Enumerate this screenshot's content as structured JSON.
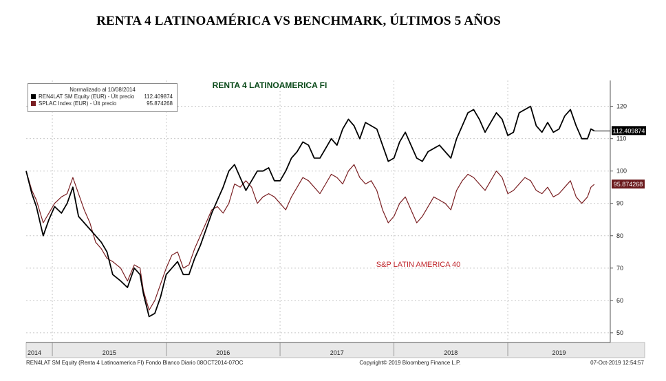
{
  "page": {
    "title": "RENTA 4 LATINOAMÉRICA VS BENCHMARK, ÚLTIMOS 5 AÑOS"
  },
  "colors": {
    "black_series": "#000000",
    "red_series": "#7a1f22",
    "grid": "#c8c8c8",
    "annotation_red": "#c0262c"
  },
  "chart_data": {
    "type": "line",
    "title": "RENTA 4 LATINOAMERICA FI",
    "annotation": "S&P LATIN AMERICA 40",
    "xlabel": "",
    "ylabel": "",
    "ylim": [
      47,
      128
    ],
    "yticks": [
      50,
      60,
      70,
      80,
      90,
      100,
      110,
      120
    ],
    "xticks": [
      "2014",
      "2015",
      "2016",
      "2017",
      "2018",
      "2019"
    ],
    "grid": true,
    "legend_position": "top-left",
    "legend": {
      "header": "Normalizado al 10/08/2014",
      "entries": [
        {
          "name": "REN4LAT SM Equity (EUR) - Últ precio",
          "value": "112.409874"
        },
        {
          "name": "SPLAC Index (EUR) - Últ precio",
          "value": "95.874268"
        }
      ]
    },
    "last_labels": {
      "black": "112.409874",
      "red": "95.874268"
    },
    "footer": {
      "left": "REN4LAT SM Equity (Renta 4 Latinoamerica FI) Fondo Blanco  Diario 08OCT2014-07OC",
      "center": "Copyright© 2019 Bloomberg Finance L.P.",
      "right": "07-Oct-2019 12:54:57"
    },
    "series": [
      {
        "name": "REN4LAT SM Equity (EUR)",
        "x": [
          2014.77,
          2014.82,
          2014.86,
          2014.92,
          2014.97,
          2015.02,
          2015.08,
          2015.13,
          2015.18,
          2015.23,
          2015.28,
          2015.33,
          2015.38,
          2015.43,
          2015.48,
          2015.53,
          2015.6,
          2015.66,
          2015.72,
          2015.77,
          2015.8,
          2015.85,
          2015.9,
          2015.95,
          2016.0,
          2016.05,
          2016.1,
          2016.15,
          2016.2,
          2016.25,
          2016.3,
          2016.35,
          2016.4,
          2016.45,
          2016.5,
          2016.55,
          2016.6,
          2016.65,
          2016.7,
          2016.75,
          2016.8,
          2016.85,
          2016.9,
          2016.95,
          2017.0,
          2017.05,
          2017.1,
          2017.15,
          2017.2,
          2017.25,
          2017.3,
          2017.35,
          2017.4,
          2017.45,
          2017.5,
          2017.55,
          2017.6,
          2017.65,
          2017.7,
          2017.75,
          2017.8,
          2017.85,
          2017.9,
          2017.95,
          2018.0,
          2018.05,
          2018.1,
          2018.15,
          2018.2,
          2018.25,
          2018.3,
          2018.35,
          2018.4,
          2018.45,
          2018.5,
          2018.55,
          2018.6,
          2018.65,
          2018.7,
          2018.75,
          2018.8,
          2018.85,
          2018.9,
          2018.95,
          2019.0,
          2019.05,
          2019.1,
          2019.15,
          2019.2,
          2019.25,
          2019.3,
          2019.35,
          2019.4,
          2019.45,
          2019.5,
          2019.55,
          2019.6,
          2019.65,
          2019.7,
          2019.73,
          2019.76
        ],
        "values": [
          100,
          93,
          89,
          80,
          85,
          89,
          87,
          90,
          95,
          86,
          84,
          82,
          80,
          78,
          75,
          68,
          66,
          64,
          70,
          68,
          62,
          55,
          56,
          61,
          68,
          70,
          72,
          68,
          68,
          73,
          77,
          82,
          87,
          91,
          95,
          100,
          102,
          98,
          94,
          97,
          100,
          100,
          101,
          97,
          97,
          100,
          104,
          106,
          109,
          108,
          104,
          104,
          107,
          110,
          108,
          113,
          116,
          114,
          110,
          115,
          114,
          113,
          108,
          103,
          104,
          109,
          112,
          108,
          104,
          103,
          106,
          107,
          108,
          106,
          104,
          110,
          114,
          118,
          119,
          116,
          112,
          115,
          118,
          116,
          111,
          112,
          118,
          119,
          120,
          114,
          112,
          115,
          112,
          113,
          117,
          119,
          114,
          110,
          110,
          113,
          112.41
        ]
      },
      {
        "name": "SPLAC Index (EUR)",
        "x": [
          2014.77,
          2014.82,
          2014.86,
          2014.92,
          2014.97,
          2015.02,
          2015.08,
          2015.13,
          2015.18,
          2015.23,
          2015.28,
          2015.33,
          2015.38,
          2015.43,
          2015.48,
          2015.53,
          2015.6,
          2015.66,
          2015.72,
          2015.77,
          2015.8,
          2015.85,
          2015.9,
          2015.95,
          2016.0,
          2016.05,
          2016.1,
          2016.15,
          2016.2,
          2016.25,
          2016.3,
          2016.35,
          2016.4,
          2016.45,
          2016.5,
          2016.55,
          2016.6,
          2016.65,
          2016.7,
          2016.75,
          2016.8,
          2016.85,
          2016.9,
          2016.95,
          2017.0,
          2017.05,
          2017.1,
          2017.15,
          2017.2,
          2017.25,
          2017.3,
          2017.35,
          2017.4,
          2017.45,
          2017.5,
          2017.55,
          2017.6,
          2017.65,
          2017.7,
          2017.75,
          2017.8,
          2017.85,
          2017.9,
          2017.95,
          2018.0,
          2018.05,
          2018.1,
          2018.15,
          2018.2,
          2018.25,
          2018.3,
          2018.35,
          2018.4,
          2018.45,
          2018.5,
          2018.55,
          2018.6,
          2018.65,
          2018.7,
          2018.75,
          2018.8,
          2018.85,
          2018.9,
          2018.95,
          2019.0,
          2019.05,
          2019.1,
          2019.15,
          2019.2,
          2019.25,
          2019.3,
          2019.35,
          2019.4,
          2019.45,
          2019.5,
          2019.55,
          2019.6,
          2019.65,
          2019.7,
          2019.73,
          2019.76
        ],
        "values": [
          100,
          94,
          91,
          84,
          87,
          90,
          92,
          93,
          98,
          93,
          88,
          84,
          78,
          76,
          73,
          72,
          70,
          66,
          71,
          70,
          63,
          57,
          60,
          65,
          70,
          74,
          75,
          70,
          71,
          76,
          80,
          84,
          88,
          89,
          87,
          90,
          96,
          95,
          97,
          95,
          90,
          92,
          93,
          92,
          90,
          88,
          92,
          95,
          98,
          97,
          95,
          93,
          96,
          99,
          98,
          96,
          100,
          102,
          98,
          96,
          97,
          94,
          88,
          84,
          86,
          90,
          92,
          88,
          84,
          86,
          89,
          92,
          91,
          90,
          88,
          94,
          97,
          99,
          98,
          96,
          94,
          97,
          100,
          98,
          93,
          94,
          96,
          98,
          97,
          94,
          93,
          95,
          92,
          93,
          95,
          97,
          92,
          90,
          92,
          95,
          95.87
        ]
      }
    ]
  }
}
